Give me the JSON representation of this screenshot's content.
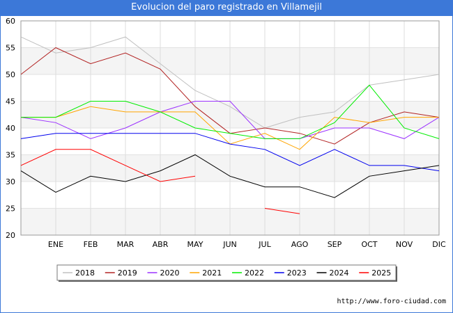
{
  "header": {
    "title": "Evolucion del paro registrado en Villamejil"
  },
  "footer": {
    "url": "http://www.foro-ciudad.com"
  },
  "chart_data": {
    "type": "line",
    "title": "Evolucion del paro registrado en Villamejil",
    "xlabel": "",
    "ylabel": "",
    "x_ticks": [
      "ENE",
      "FEB",
      "MAR",
      "ABR",
      "MAY",
      "JUN",
      "JUL",
      "AGO",
      "SEP",
      "OCT",
      "NOV",
      "DIC"
    ],
    "y_ticks": [
      20,
      25,
      30,
      35,
      40,
      45,
      50,
      55,
      60
    ],
    "ylim": [
      20,
      60
    ],
    "grid": true,
    "legend_position": "bottom",
    "series": [
      {
        "name": "2018",
        "color": "#c0c0c0",
        "values": [
          57,
          54,
          55,
          57,
          52,
          47,
          44,
          40,
          42,
          43,
          48,
          49,
          50
        ]
      },
      {
        "name": "2019",
        "color": "#b22222",
        "values": [
          50,
          55,
          52,
          54,
          51,
          44,
          39,
          40,
          39,
          37,
          41,
          43,
          42
        ]
      },
      {
        "name": "2020",
        "color": "#9b30ff",
        "values": [
          42,
          41,
          38,
          40,
          43,
          45,
          45,
          38,
          38,
          40,
          40,
          38,
          42
        ]
      },
      {
        "name": "2021",
        "color": "#ffa500",
        "values": [
          42,
          42,
          44,
          43,
          43,
          43,
          37,
          39,
          36,
          42,
          41,
          42,
          42
        ]
      },
      {
        "name": "2022",
        "color": "#00ee00",
        "values": [
          42,
          42,
          45,
          45,
          43,
          40,
          39,
          38,
          38,
          41,
          48,
          40,
          38
        ]
      },
      {
        "name": "2023",
        "color": "#0000ee",
        "values": [
          38,
          39,
          39,
          39,
          39,
          39,
          37,
          36,
          33,
          36,
          33,
          33,
          32
        ]
      },
      {
        "name": "2024",
        "color": "#000000",
        "values": [
          32,
          28,
          31,
          30,
          32,
          35,
          31,
          29,
          29,
          27,
          31,
          32,
          33
        ]
      },
      {
        "name": "2025",
        "color": "#ff0000",
        "values": [
          33,
          36,
          36,
          33,
          30,
          31,
          null,
          25,
          24,
          null,
          null,
          null,
          null
        ]
      }
    ]
  }
}
